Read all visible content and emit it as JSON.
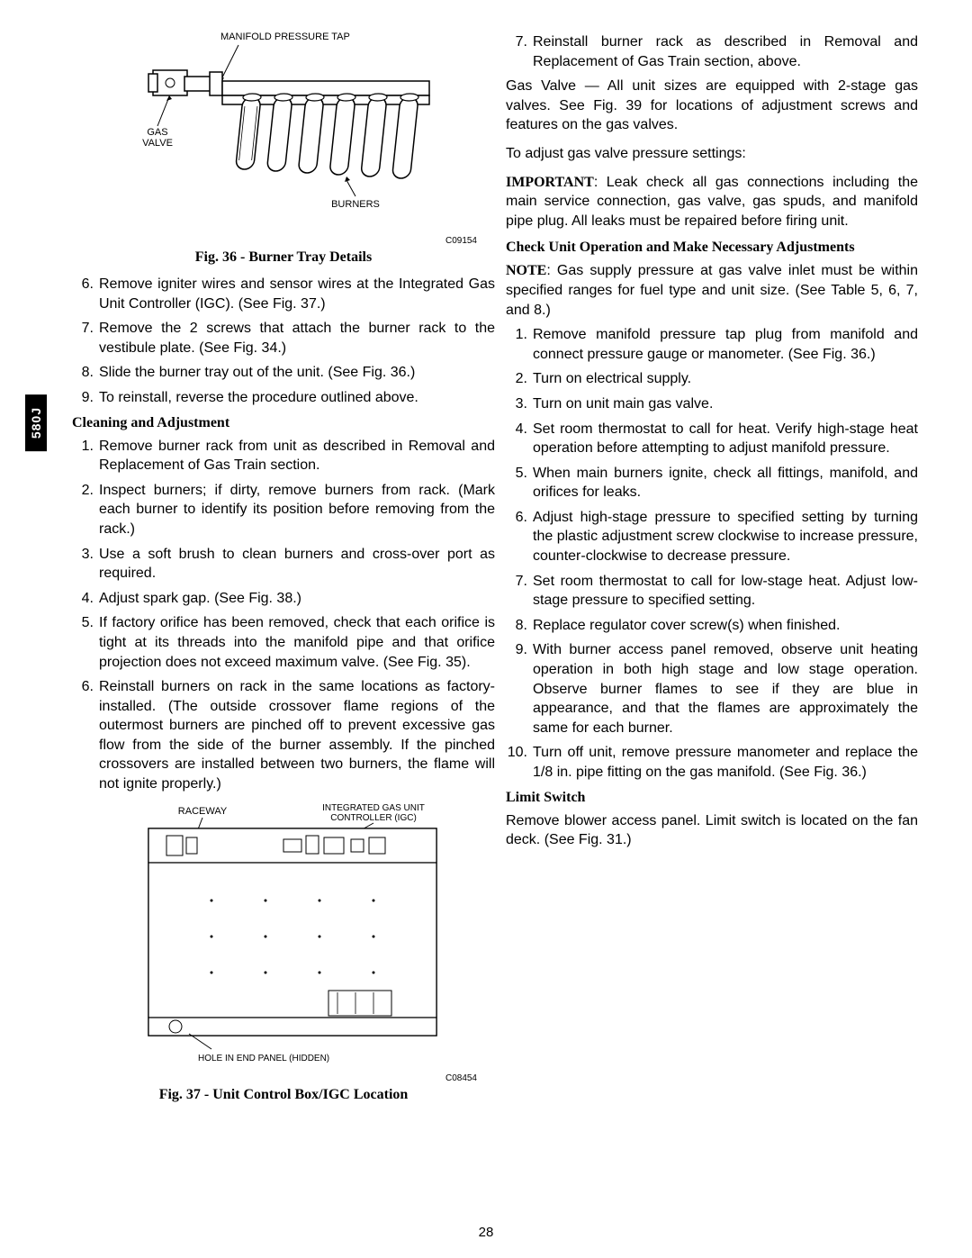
{
  "sideTab": "580J",
  "pageNumber": "28",
  "fig36": {
    "labelTap": "MANIFOLD PRESSURE TAP",
    "labelGasValve": "GAS\nVALVE",
    "labelBurners": "BURNERS",
    "code": "C09154",
    "caption": "Fig. 36 - Burner Tray Details"
  },
  "fig37": {
    "labelRaceway": "RACEWAY",
    "labelIGC": "INTEGRATED GAS UNIT\nCONTROLLER (IGC)",
    "labelHole": "HOLE IN END PANEL (HIDDEN)",
    "code": "C08454",
    "caption": "Fig. 37 - Unit Control Box/IGC Location"
  },
  "leftList1": [
    {
      "n": "6.",
      "t": "Remove igniter wires and sensor wires at the Integrated Gas Unit Controller (IGC). (See Fig. 37.)"
    },
    {
      "n": "7.",
      "t": "Remove the 2 screws that attach the burner rack to the vestibule plate. (See Fig. 34.)"
    },
    {
      "n": "8.",
      "t": "Slide the burner tray out of the unit. (See Fig. 36.)"
    },
    {
      "n": "9.",
      "t": "To reinstall, reverse the procedure outlined above."
    }
  ],
  "headingCleaning": "Cleaning and Adjustment",
  "leftList2": [
    {
      "n": "1.",
      "t": "Remove burner rack from unit as described in Removal and Replacement of Gas Train section."
    },
    {
      "n": "2.",
      "t": "Inspect burners; if dirty, remove burners from rack. (Mark each burner to identify its position before removing from the rack.)"
    },
    {
      "n": "3.",
      "t": "Use a soft brush to clean burners and cross-over port as required."
    },
    {
      "n": "4.",
      "t": "Adjust spark gap. (See Fig. 38.)"
    },
    {
      "n": "5.",
      "t": "If factory orifice has been removed, check that each orifice is tight at its threads into the manifold pipe and that orifice projection does not exceed maximum valve. (See Fig. 35)."
    },
    {
      "n": "6.",
      "t": "Reinstall burners on rack in the same locations as factory-installed. (The outside crossover flame regions of the outermost burners are pinched off to prevent excessive gas flow from the side of the burner assembly. If the pinched crossovers are installed between two burners, the flame will not ignite properly.)"
    }
  ],
  "rightList1": [
    {
      "n": "7.",
      "t": "Reinstall burner rack as described in Removal and Replacement of Gas Train section, above."
    }
  ],
  "gasValveLead": "Gas Valve",
  "gasValvePara": " — All unit sizes are equipped with 2-stage gas valves. See Fig. 39 for locations of adjustment screws and features on the gas valves.",
  "adjustPara": "To adjust gas valve pressure settings:",
  "importantLead": "IMPORTANT",
  "importantPara": ": Leak check all gas connections including the main service connection, gas valve, gas spuds, and manifold pipe plug. All leaks must be repaired before firing unit.",
  "headingCheck": "Check Unit Operation and Make Necessary Adjustments",
  "noteLead": "NOTE",
  "notePara": ": Gas supply pressure at gas valve inlet must be within specified ranges for fuel type and unit size. (See Table 5, 6, 7, and 8.)",
  "rightList2": [
    {
      "n": "1.",
      "t": "Remove manifold pressure tap plug from manifold and connect pressure gauge or manometer. (See Fig. 36.)"
    },
    {
      "n": "2.",
      "t": "Turn on electrical supply."
    },
    {
      "n": "3.",
      "t": "Turn on unit main gas valve."
    },
    {
      "n": "4.",
      "t": "Set room thermostat to call for heat. Verify high-stage heat operation before attempting to adjust manifold pressure."
    },
    {
      "n": "5.",
      "t": "When main burners ignite, check all fittings, manifold, and orifices for leaks."
    },
    {
      "n": "6.",
      "t": "Adjust high-stage pressure to specified setting by turning the plastic adjustment screw clockwise to increase pressure, counter-clockwise to decrease pressure."
    },
    {
      "n": "7.",
      "t": "Set room thermostat to call for low-stage heat. Adjust low-stage pressure to specified setting."
    },
    {
      "n": "8.",
      "t": "Replace regulator cover screw(s) when finished."
    },
    {
      "n": "9.",
      "t": "With burner access panel removed, observe unit heating operation in both high stage and low stage operation. Observe burner flames to see if they are blue in appearance, and that the flames are approximately the same for each burner."
    },
    {
      "n": "10.",
      "t": "Turn off unit, remove pressure manometer and replace the 1/8 in. pipe fitting on the gas manifold. (See Fig. 36.)"
    }
  ],
  "headingLimit": "Limit Switch",
  "limitPara": "Remove blower access panel. Limit switch is located on the fan deck. (See Fig. 31.)"
}
